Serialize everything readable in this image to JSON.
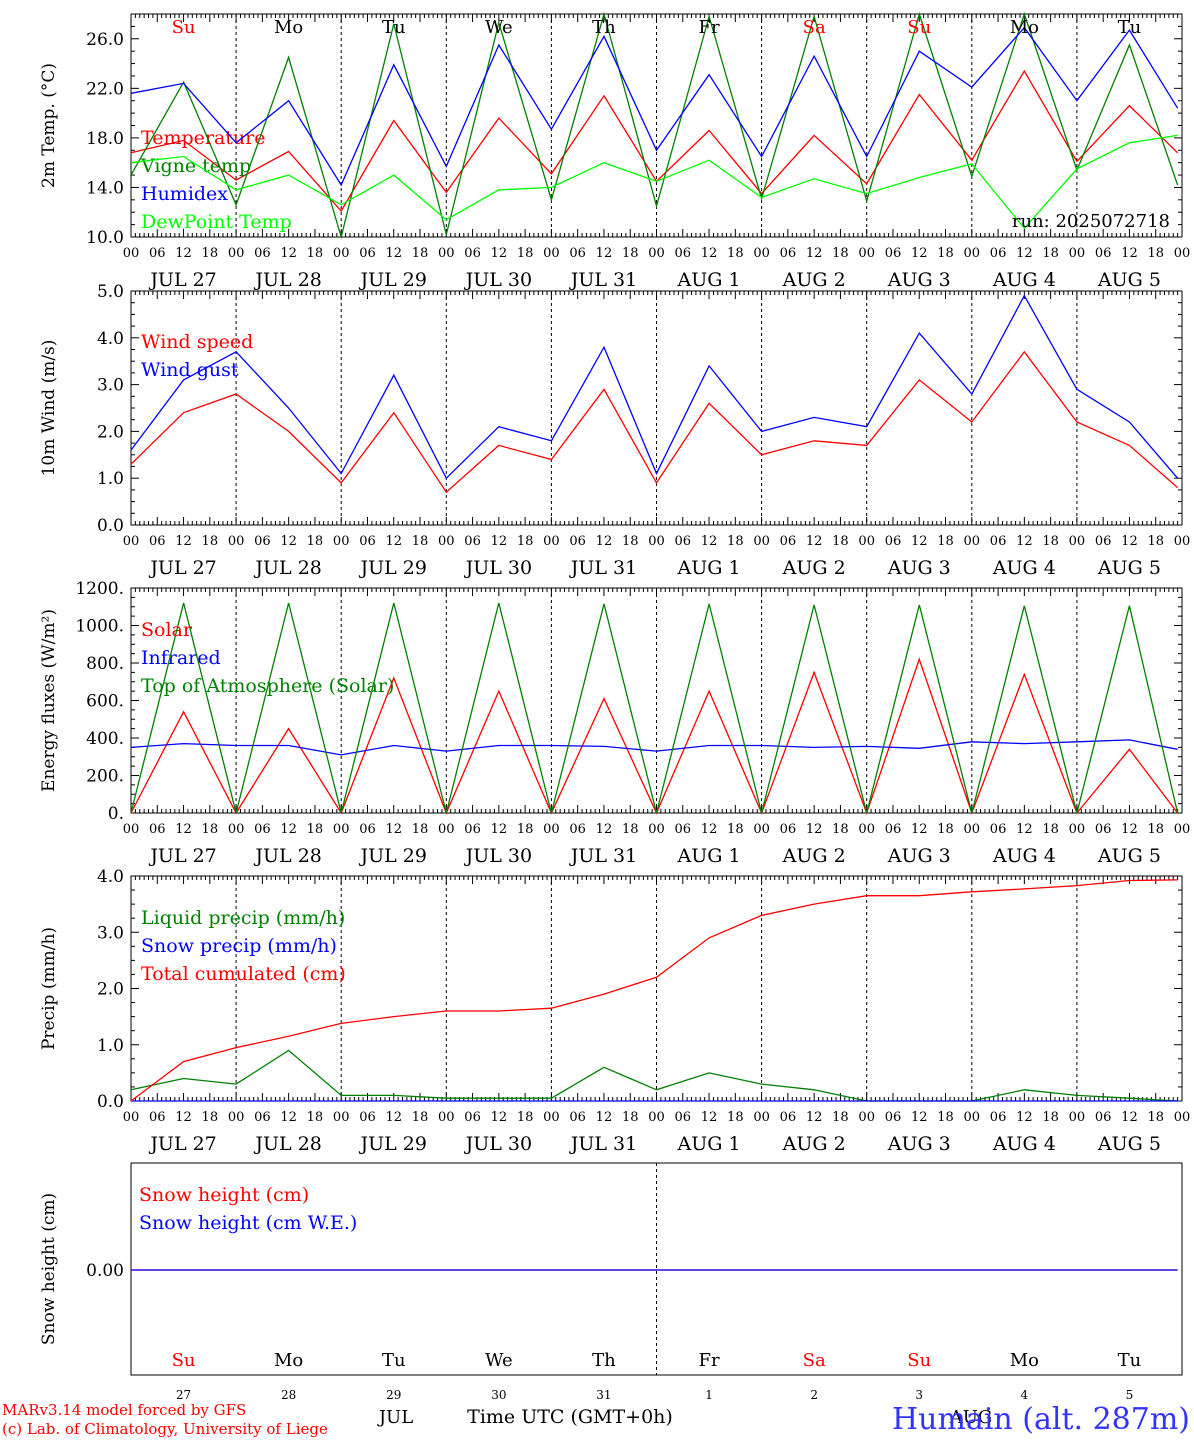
{
  "chart_data": [
    {
      "type": "line",
      "panel": "temperature",
      "ylabel": "2m Temp. (°C)",
      "ylim": [
        10,
        28
      ],
      "yticks": [
        10,
        14,
        18,
        22,
        26
      ],
      "ytick_labels": [
        "10.0",
        "14.0",
        "18.0",
        "22.0",
        "26.0"
      ],
      "annotation": "run: 2025072718",
      "x": [
        "2025-07-27T00",
        "2025-07-27T12",
        "2025-07-28T00",
        "2025-07-28T12",
        "2025-07-29T00",
        "2025-07-29T12",
        "2025-07-30T00",
        "2025-07-30T12",
        "2025-07-31T00",
        "2025-07-31T12",
        "2025-08-01T00",
        "2025-08-01T12",
        "2025-08-02T00",
        "2025-08-02T12",
        "2025-08-03T00",
        "2025-08-03T12",
        "2025-08-04T00",
        "2025-08-04T12",
        "2025-08-05T00",
        "2025-08-05T12",
        "2025-08-05T23"
      ],
      "series": [
        {
          "name": "Temperature",
          "color": "#ff0000",
          "values": [
            16.8,
            17.8,
            14.6,
            16.9,
            12.1,
            19.4,
            13.6,
            19.6,
            15.1,
            21.4,
            14.5,
            18.6,
            13.5,
            18.2,
            14.3,
            21.5,
            16.2,
            23.4,
            16.1,
            20.6,
            16.8
          ]
        },
        {
          "name": "Vigne temp",
          "color": "#008000",
          "values": [
            15.0,
            22.5,
            12.6,
            24.5,
            8.5,
            27.2,
            10.2,
            27.3,
            13.0,
            28.2,
            12.5,
            27.8,
            13.1,
            27.8,
            12.9,
            29.0,
            14.9,
            28.5,
            15.4,
            25.5,
            14.2
          ]
        },
        {
          "name": "Humidex",
          "color": "#0000ff",
          "values": [
            21.6,
            22.4,
            17.6,
            21.0,
            14.2,
            23.9,
            15.7,
            25.5,
            18.7,
            26.2,
            17.0,
            23.1,
            16.5,
            24.6,
            16.5,
            25.0,
            22.1,
            26.9,
            21.0,
            26.7,
            20.4
          ]
        },
        {
          "name": "DewPoint Temp",
          "color": "#00ff00",
          "values": [
            16.0,
            16.5,
            13.8,
            15.0,
            12.6,
            15.0,
            11.4,
            13.8,
            14.0,
            16.0,
            14.5,
            16.2,
            13.2,
            14.7,
            13.5,
            14.8,
            15.9,
            10.7,
            15.5,
            17.6,
            18.2
          ]
        }
      ]
    },
    {
      "type": "line",
      "panel": "wind",
      "ylabel": "10m Wind (m/s)",
      "ylim": [
        0,
        5
      ],
      "yticks": [
        0,
        1,
        2,
        3,
        4,
        5
      ],
      "ytick_labels": [
        "0.0",
        "1.0",
        "2.0",
        "3.0",
        "4.0",
        "5.0"
      ],
      "x": [
        "2025-07-27T00",
        "2025-07-27T12",
        "2025-07-28T00",
        "2025-07-28T12",
        "2025-07-29T00",
        "2025-07-29T12",
        "2025-07-30T00",
        "2025-07-30T12",
        "2025-07-31T00",
        "2025-07-31T12",
        "2025-08-01T00",
        "2025-08-01T12",
        "2025-08-02T00",
        "2025-08-02T12",
        "2025-08-03T00",
        "2025-08-03T12",
        "2025-08-04T00",
        "2025-08-04T12",
        "2025-08-05T00",
        "2025-08-05T12",
        "2025-08-05T23"
      ],
      "series": [
        {
          "name": "Wind speed",
          "color": "#ff0000",
          "values": [
            1.3,
            2.4,
            2.8,
            2.0,
            0.9,
            2.4,
            0.7,
            1.7,
            1.4,
            2.9,
            0.9,
            2.6,
            1.5,
            1.8,
            1.7,
            3.1,
            2.2,
            3.7,
            2.2,
            1.7,
            0.8
          ]
        },
        {
          "name": "Wind gust",
          "color": "#0000ff",
          "values": [
            1.6,
            3.1,
            3.7,
            2.5,
            1.1,
            3.2,
            1.0,
            2.1,
            1.8,
            3.8,
            1.1,
            3.4,
            2.0,
            2.3,
            2.1,
            4.1,
            2.8,
            4.9,
            2.9,
            2.2,
            1.0
          ]
        }
      ]
    },
    {
      "type": "line",
      "panel": "energy",
      "ylabel": "Energy fluxes (W/m²)",
      "ylim": [
        0,
        1200
      ],
      "yticks": [
        0,
        200,
        400,
        600,
        800,
        1000,
        1200
      ],
      "ytick_labels": [
        "0.",
        "200.",
        "400.",
        "600.",
        "800.",
        "1000.",
        "1200."
      ],
      "x": [
        "2025-07-27T00",
        "2025-07-27T12",
        "2025-07-28T00",
        "2025-07-28T12",
        "2025-07-29T00",
        "2025-07-29T12",
        "2025-07-30T00",
        "2025-07-30T12",
        "2025-07-31T00",
        "2025-07-31T12",
        "2025-08-01T00",
        "2025-08-01T12",
        "2025-08-02T00",
        "2025-08-02T12",
        "2025-08-03T00",
        "2025-08-03T12",
        "2025-08-04T00",
        "2025-08-04T12",
        "2025-08-05T00",
        "2025-08-05T12",
        "2025-08-05T23"
      ],
      "series": [
        {
          "name": "Solar",
          "color": "#ff0000",
          "values": [
            0,
            540,
            0,
            450,
            0,
            720,
            0,
            650,
            0,
            610,
            0,
            650,
            0,
            750,
            0,
            820,
            0,
            740,
            0,
            340,
            0
          ]
        },
        {
          "name": "Infrared",
          "color": "#0000ff",
          "values": [
            350,
            370,
            360,
            360,
            310,
            360,
            330,
            360,
            360,
            355,
            330,
            360,
            360,
            350,
            355,
            345,
            380,
            370,
            380,
            390,
            340
          ]
        },
        {
          "name": "Top of Atmosphere (Solar)",
          "color": "#008000",
          "values": [
            0,
            1120,
            0,
            1120,
            0,
            1120,
            0,
            1120,
            0,
            1115,
            0,
            1115,
            0,
            1110,
            0,
            1110,
            0,
            1105,
            0,
            1105,
            0
          ]
        }
      ]
    },
    {
      "type": "line",
      "panel": "precip",
      "ylabel": "Precip (mm/h)",
      "ylim": [
        0,
        4
      ],
      "yticks": [
        0,
        1,
        2,
        3,
        4
      ],
      "ytick_labels": [
        "0.0",
        "1.0",
        "2.0",
        "3.0",
        "4.0"
      ],
      "x": [
        "2025-07-27T00",
        "2025-07-27T12",
        "2025-07-28T00",
        "2025-07-28T12",
        "2025-07-29T00",
        "2025-07-29T12",
        "2025-07-30T00",
        "2025-07-30T12",
        "2025-07-31T00",
        "2025-07-31T12",
        "2025-08-01T00",
        "2025-08-01T12",
        "2025-08-02T00",
        "2025-08-02T12",
        "2025-08-03T00",
        "2025-08-03T12",
        "2025-08-04T00",
        "2025-08-04T12",
        "2025-08-05T00",
        "2025-08-05T12",
        "2025-08-05T23"
      ],
      "series": [
        {
          "name": "Liquid precip (mm/h)",
          "color": "#008000",
          "values": [
            0.2,
            0.4,
            0.3,
            0.9,
            0.1,
            0.1,
            0.05,
            0.05,
            0.05,
            0.6,
            0.2,
            0.5,
            0.3,
            0.2,
            0.0,
            0.0,
            0.0,
            0.2,
            0.1,
            0.05,
            0.0
          ]
        },
        {
          "name": "Snow precip (mm/h)",
          "color": "#0000ff",
          "values": [
            0,
            0,
            0,
            0,
            0,
            0,
            0,
            0,
            0,
            0,
            0,
            0,
            0,
            0,
            0,
            0,
            0,
            0,
            0,
            0,
            0
          ]
        },
        {
          "name": "Total cumulated (cm)",
          "color": "#ff0000",
          "values": [
            0.0,
            0.7,
            0.95,
            1.15,
            1.38,
            1.5,
            1.6,
            1.6,
            1.65,
            1.9,
            2.2,
            2.9,
            3.3,
            3.5,
            3.65,
            3.65,
            3.72,
            3.77,
            3.83,
            3.92,
            3.93
          ]
        }
      ]
    },
    {
      "type": "line",
      "panel": "snow",
      "ylabel": "Snow height (cm)",
      "ytick_labels": [
        "0.00"
      ],
      "x": [
        "2025-07-27T00",
        "2025-08-05T23"
      ],
      "series": [
        {
          "name": "Snow height (cm)",
          "color": "#ff0000",
          "values": [
            0.0,
            0.0
          ]
        },
        {
          "name": "Snow height (cm W.E.)",
          "color": "#0000ff",
          "values": [
            0.0,
            0.0
          ]
        }
      ]
    }
  ],
  "x_axis": {
    "hour_labels": [
      "00",
      "06",
      "12",
      "18"
    ],
    "final_hour_label": "00",
    "date_labels": [
      "JUL 27",
      "JUL 28",
      "JUL 29",
      "JUL 30",
      "JUL 31",
      "AUG  1",
      "AUG  2",
      "AUG  3",
      "AUG  4",
      "AUG  5"
    ]
  },
  "days": [
    {
      "abbr": "Su",
      "num": "27",
      "color": "#ff0000"
    },
    {
      "abbr": "Mo",
      "num": "28",
      "color": "#000000"
    },
    {
      "abbr": "Tu",
      "num": "29",
      "color": "#000000"
    },
    {
      "abbr": "We",
      "num": "30",
      "color": "#000000"
    },
    {
      "abbr": "Th",
      "num": "31",
      "color": "#000000"
    },
    {
      "abbr": "Fr",
      "num": "1",
      "color": "#000000"
    },
    {
      "abbr": "Sa",
      "num": "2",
      "color": "#ff0000"
    },
    {
      "abbr": "Su",
      "num": "3",
      "color": "#ff0000"
    },
    {
      "abbr": "Mo",
      "num": "4",
      "color": "#000000"
    },
    {
      "abbr": "Tu",
      "num": "5",
      "color": "#000000"
    }
  ],
  "footer": {
    "month_left": "JUL",
    "month_right": "AUG",
    "time_label": "Time UTC (GMT+0h)",
    "credit_line1": "MARv3.14 model forced by GFS",
    "credit_line2": "(c) Lab. of Climatology, University of Liege",
    "station": "Humain (alt. 287m)",
    "credit_color": "#ff0000",
    "station_color": "#3333ff"
  }
}
